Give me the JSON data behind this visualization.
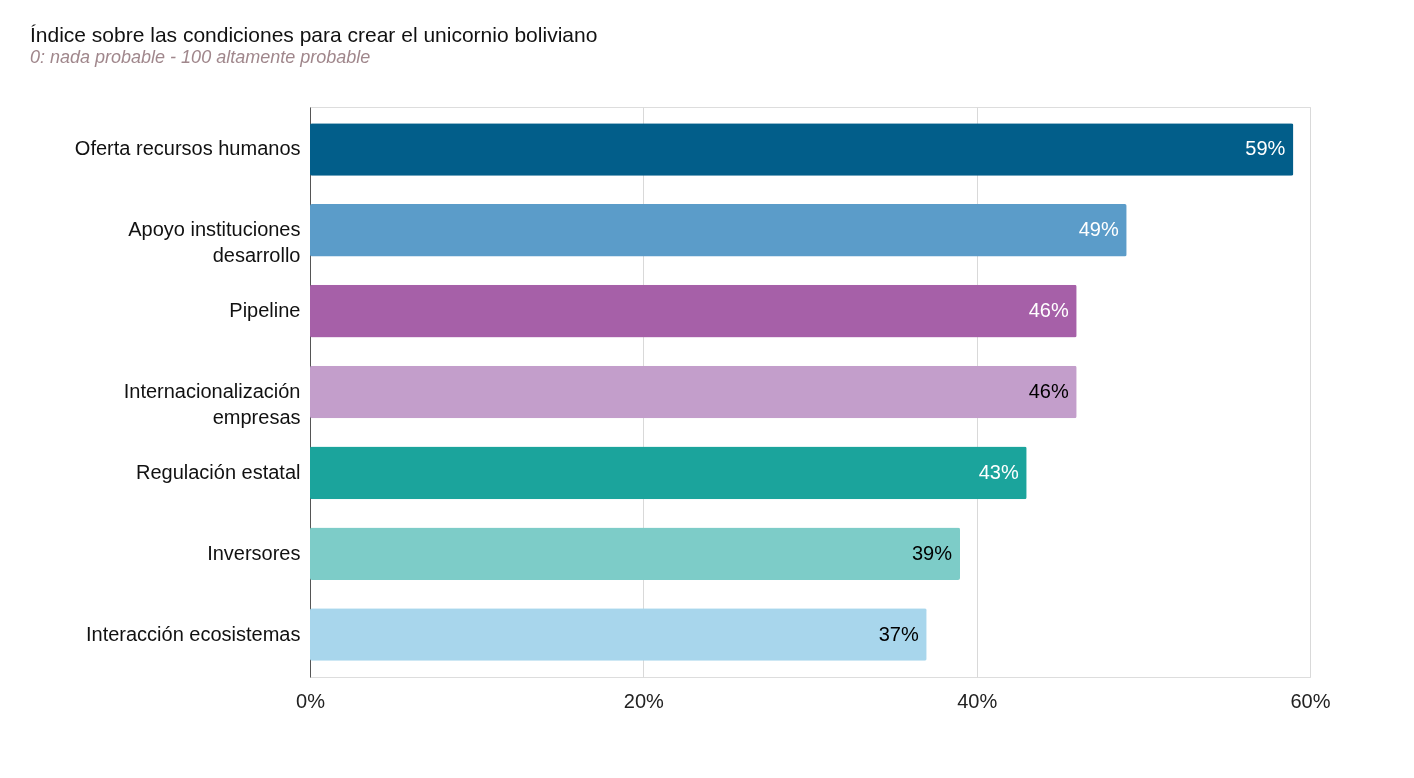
{
  "chart_data": {
    "type": "bar",
    "orientation": "horizontal",
    "title": "Índice sobre las condiciones para crear el unicornio boliviano",
    "subtitle": "0: nada probable - 100 altamente probable",
    "categories": [
      "Oferta recursos humanos",
      "Apoyo instituciones desarrollo",
      "Pipeline",
      "Internacionalización empresas",
      "Regulación estatal",
      "Inversores",
      "Interacción ecosistemas"
    ],
    "values": [
      59,
      49,
      46,
      46,
      43,
      39,
      37
    ],
    "colors": [
      "#025e8a",
      "#5b9cc9",
      "#a660a8",
      "#c39ecb",
      "#1ba49c",
      "#7dccc8",
      "#a8d6ec"
    ],
    "value_labels": [
      "59%",
      "49%",
      "46%",
      "46%",
      "43%",
      "39%",
      "37%"
    ],
    "xlim": [
      0,
      60
    ],
    "xticks": [
      {
        "value": 0,
        "label": "0%"
      },
      {
        "value": 20,
        "label": "20%"
      },
      {
        "value": 40,
        "label": "40%"
      },
      {
        "value": 60,
        "label": "60%"
      }
    ],
    "grid": "x"
  }
}
